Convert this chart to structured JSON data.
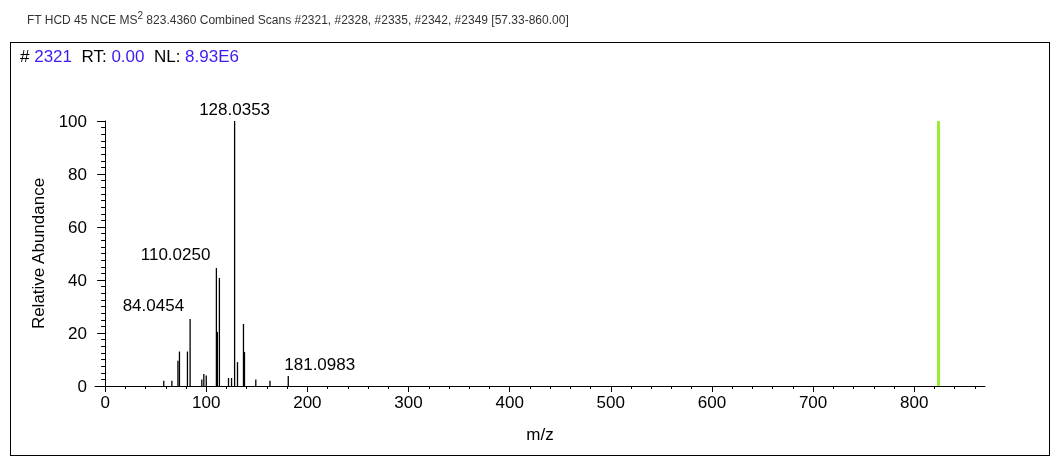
{
  "chart_data": {
    "type": "bar",
    "title": "FT HCD 45 NCE MS$^{2}$ 823.4360 Combined Scans #2321, #2328, #2335, #2342, #2349 [57.33-860.00]",
    "subtitle": "# 2321  RT: 0.00  NL: 8.93E6",
    "xlabel": "m/z",
    "ylabel": "Relative Abundance",
    "x": [
      58,
      66,
      72,
      73.5,
      81.4,
      84.0454,
      95.6,
      97.6,
      100,
      110.025,
      111,
      113,
      122,
      125,
      128.0353,
      130.9,
      136.8,
      137.8,
      149,
      163,
      181.0983
    ],
    "series": [
      {
        "color": "#000000",
        "values": [
          2,
          2,
          9.5,
          13,
          13,
          25.3,
          2.5,
          4.5,
          4,
          44.5,
          20.4,
          40.8,
          3,
          3,
          100,
          9,
          23.4,
          12.8,
          2.5,
          2,
          3.8
        ]
      }
    ],
    "annotations": [
      {
        "text": "84.0454",
        "x": 84.0454,
        "y": 25.3
      },
      {
        "text": "110.0250",
        "x": 110.025,
        "y": 44.5
      },
      {
        "text": "128.0353",
        "x": 128.0353,
        "y": 100
      },
      {
        "text": "181.0983",
        "x": 181.0983,
        "y": 3.8
      }
    ],
    "xlim": [
      -10,
      870
    ],
    "xticks": [
      0,
      100,
      200,
      300,
      400,
      500,
      600,
      700,
      800
    ],
    "ylim": [
      0,
      100
    ],
    "yticks": [
      0,
      20,
      40,
      60,
      80,
      100
    ],
    "ref_lines": [
      {
        "axis": "x",
        "value": 823.436,
        "color": "#99ee33"
      }
    ],
    "grid": false
  }
}
